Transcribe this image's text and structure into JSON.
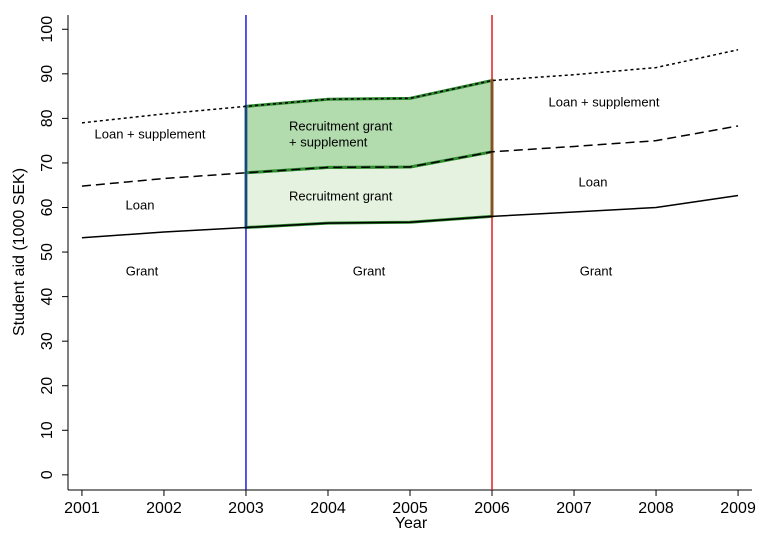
{
  "chart_data": {
    "type": "line",
    "x_label": "Year",
    "y_label": "Student aid (1000 SEK)",
    "x": [
      2001,
      2002,
      2003,
      2004,
      2005,
      2006,
      2007,
      2008,
      2009
    ],
    "series": [
      {
        "name": "Grant",
        "color": "#000000",
        "dash": "solid",
        "values": [
          53.2,
          54.5,
          55.5,
          56.5,
          56.7,
          58.0,
          59.0,
          60.0,
          62.7
        ]
      },
      {
        "name": "Loan",
        "color": "#000000",
        "dash": "dashed",
        "values": [
          64.8,
          66.5,
          67.8,
          69.0,
          69.1,
          72.5,
          73.7,
          75.0,
          78.3
        ]
      },
      {
        "name": "Loan + supplement",
        "color": "#000000",
        "dash": "dotted",
        "values": [
          79.0,
          81.0,
          82.7,
          84.3,
          84.5,
          88.5,
          89.8,
          91.4,
          95.4
        ]
      }
    ],
    "shade": {
      "from": 2003,
      "to": 2006,
      "colors": [
        "#e5f2e0",
        "#b2dbae"
      ],
      "outline": "#2e8b2e"
    },
    "vlines": [
      {
        "x": 2003,
        "color": "#1f1fd6"
      },
      {
        "x": 2006,
        "color": "#e02020"
      }
    ],
    "annotations": [
      "Loan + supplement",
      "Loan",
      "Grant",
      "Recruitment grant",
      "+ supplement",
      "Recruitment grant",
      "Grant",
      "Loan + supplement",
      "Loan",
      "Grant"
    ],
    "xlim": [
      2000.83,
      2009.17
    ],
    "ylim": [
      -3.4,
      103.2
    ],
    "xticks": [
      2001,
      2002,
      2003,
      2004,
      2005,
      2006,
      2007,
      2008,
      2009
    ],
    "yticks": [
      0,
      10,
      20,
      30,
      40,
      50,
      60,
      70,
      80,
      90,
      100
    ]
  }
}
